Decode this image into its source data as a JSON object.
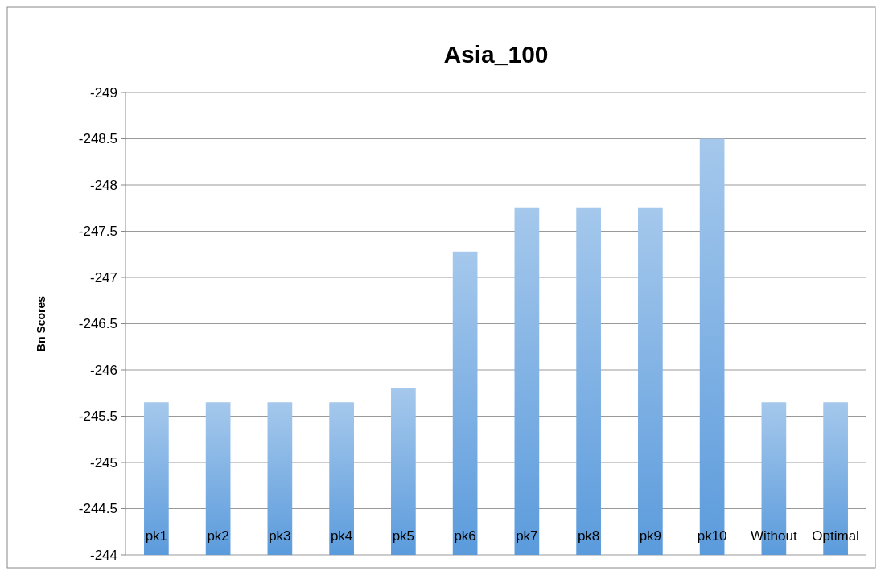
{
  "chart_data": {
    "type": "bar",
    "title": "Asia_100",
    "ylabel": "Bn Scores",
    "categories": [
      "pk1",
      "pk2",
      "pk3",
      "pk4",
      "pk5",
      "pk6",
      "pk7",
      "pk8",
      "pk9",
      "pk10",
      "Without",
      "Optimal"
    ],
    "values": [
      -245.65,
      -245.65,
      -245.65,
      -245.65,
      -245.8,
      -247.28,
      -247.75,
      -247.75,
      -247.75,
      -248.5,
      -245.65,
      -245.65
    ],
    "color": "#5b9bdc",
    "ylim": [
      -244,
      -249
    ],
    "yticks": [
      -244,
      -244.5,
      -245,
      -245.5,
      -246,
      -246.5,
      -247,
      -247.5,
      -248,
      -248.5,
      -249
    ],
    "grid": "y"
  }
}
